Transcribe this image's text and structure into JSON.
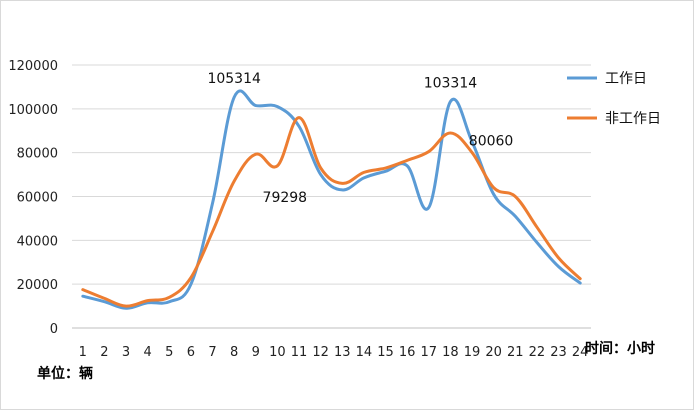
{
  "chart_data": {
    "type": "line",
    "x": [
      "1",
      "2",
      "3",
      "4",
      "5",
      "6",
      "7",
      "8",
      "9",
      "10",
      "11",
      "12",
      "13",
      "14",
      "15",
      "16",
      "17",
      "18",
      "19",
      "20",
      "21",
      "22",
      "23",
      "24"
    ],
    "xlabel": "时间：小时",
    "ylabel": "单位：辆",
    "ylim": [
      0,
      120000
    ],
    "yticks": [
      0,
      20000,
      40000,
      60000,
      80000,
      100000,
      120000
    ],
    "grid": true,
    "legend_position": "right",
    "series": [
      {
        "name": "工作日",
        "color": "#5B9BD5",
        "values": [
          14500,
          12000,
          9000,
          11500,
          12000,
          20000,
          57000,
          105314,
          101500,
          101000,
          92000,
          70000,
          63000,
          68500,
          71500,
          74000,
          55000,
          103314,
          85000,
          61000,
          51000,
          39000,
          28000,
          20500
        ]
      },
      {
        "name": "非工作日",
        "color": "#ED7D31",
        "values": [
          17500,
          13500,
          10000,
          12500,
          14000,
          23000,
          44000,
          67000,
          79298,
          74000,
          96000,
          73000,
          66000,
          71000,
          73000,
          76500,
          80500,
          89000,
          80060,
          64000,
          60000,
          46000,
          32000,
          22500
        ]
      }
    ],
    "annotations": [
      {
        "text": "105314",
        "series": 0,
        "x": "8"
      },
      {
        "text": "79298",
        "series": 1,
        "x": "9"
      },
      {
        "text": "103314",
        "series": 0,
        "x": "18"
      },
      {
        "text": "80060",
        "series": 1,
        "x": "19"
      }
    ]
  }
}
